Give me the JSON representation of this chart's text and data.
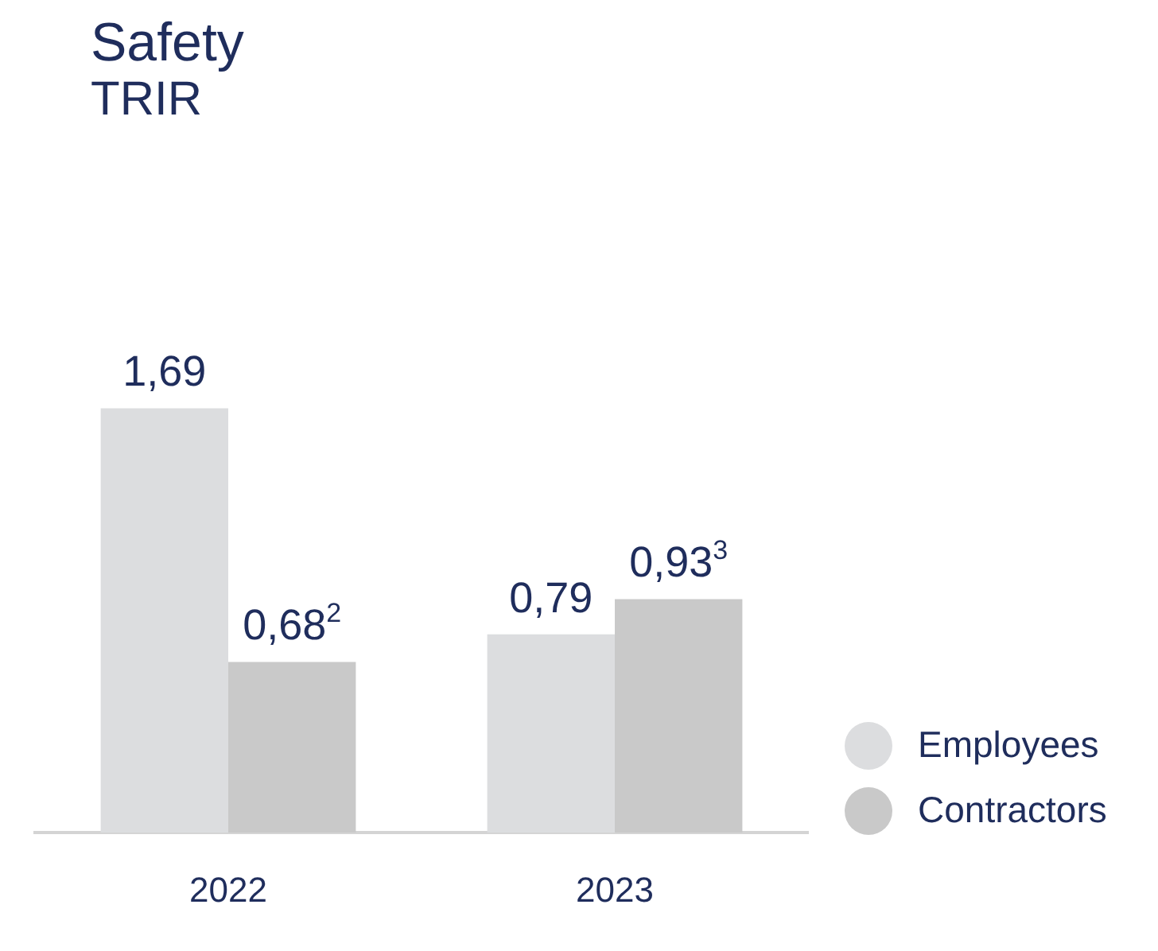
{
  "chart_data": {
    "type": "bar",
    "title": "Safety",
    "subtitle": "TRIR",
    "categories": [
      "2022",
      "2023"
    ],
    "series": [
      {
        "name": "Employees",
        "color": "#dcdddf",
        "values": [
          1.69,
          0.79
        ],
        "value_labels": [
          "1,69",
          "0,79"
        ]
      },
      {
        "name": "Contractors",
        "color": "#c9c9c9",
        "values": [
          0.68,
          0.93
        ],
        "value_labels": [
          "0,68$^{2}$",
          "0,93$^{3}$"
        ]
      }
    ],
    "legend": "right",
    "grid": false
  }
}
